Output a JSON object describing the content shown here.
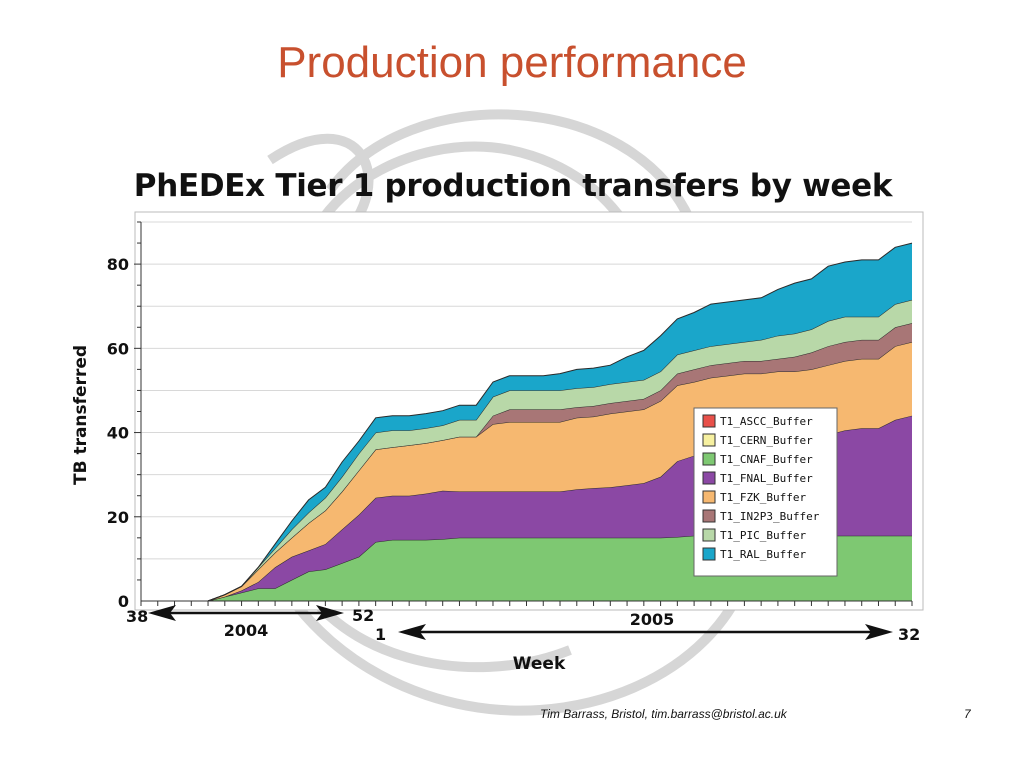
{
  "slide": {
    "title": "Production performance",
    "footer": "Tim Barrass, Bristol, tim.barrass@bristol.ac.uk",
    "page_number": "7"
  },
  "chart_data": {
    "type": "area",
    "stacked": true,
    "title": "PhEDEx Tier 1 production transfers by week",
    "xlabel": "Week",
    "ylabel": "TB  transferred",
    "ylim": [
      0,
      90
    ],
    "yticks": [
      0,
      20,
      40,
      60,
      80
    ],
    "grid": "horizontal",
    "legend_position": "center-right",
    "x": [
      "2004-38",
      "2004-39",
      "2004-40",
      "2004-41",
      "2004-42",
      "2004-43",
      "2004-44",
      "2004-45",
      "2004-46",
      "2004-47",
      "2004-48",
      "2004-49",
      "2004-50",
      "2004-51",
      "2004-52",
      "2005-01",
      "2005-02",
      "2005-03",
      "2005-04",
      "2005-05",
      "2005-06",
      "2005-07",
      "2005-08",
      "2005-09",
      "2005-10",
      "2005-11",
      "2005-12",
      "2005-13",
      "2005-14",
      "2005-15",
      "2005-16",
      "2005-17",
      "2005-18",
      "2005-19",
      "2005-20",
      "2005-21",
      "2005-22",
      "2005-23",
      "2005-24",
      "2005-25",
      "2005-26",
      "2005-27",
      "2005-28",
      "2005-29",
      "2005-30",
      "2005-31",
      "2005-32"
    ],
    "x_annotations": {
      "year_2004": "2004",
      "year_2005": "2005",
      "week_start_2004": "38",
      "week_end_2004": "52",
      "week_start_2005": "1",
      "week_end_2005": "32"
    },
    "series": [
      {
        "name": "T1_ASCC_Buffer",
        "color": "#e8504a",
        "values": [
          0,
          0,
          0,
          0,
          0,
          0,
          0,
          0,
          0,
          0,
          0,
          0,
          0,
          0,
          0,
          0,
          0,
          0,
          0,
          0,
          0,
          0,
          0,
          0,
          0,
          0,
          0,
          0,
          0,
          0,
          0,
          0,
          0,
          0,
          0,
          0,
          0,
          0,
          0,
          0,
          0,
          0,
          0,
          0,
          0,
          0,
          0
        ]
      },
      {
        "name": "T1_CERN_Buffer",
        "color": "#f6f0a0",
        "values": [
          0,
          0,
          0,
          0,
          0,
          0,
          0,
          0,
          0,
          0,
          0,
          0,
          0,
          0,
          0,
          0,
          0,
          0,
          0,
          0,
          0,
          0,
          0,
          0,
          0,
          0,
          0,
          0,
          0,
          0,
          0,
          0,
          0,
          0,
          0,
          0,
          0,
          0,
          0,
          0,
          0,
          0,
          0,
          0,
          0,
          0,
          0
        ]
      },
      {
        "name": "T1_CNAF_Buffer",
        "color": "#7ec872",
        "values": [
          0,
          0,
          0,
          0,
          0,
          1,
          2,
          3,
          3,
          5,
          7,
          7.5,
          9,
          10.5,
          14,
          14.5,
          14.5,
          14.5,
          14.7,
          15,
          15,
          15,
          15,
          15,
          15,
          15,
          15,
          15,
          15,
          15,
          15,
          15,
          15.2,
          15.5,
          15.5,
          15.5,
          15.5,
          15.5,
          15.5,
          15.5,
          15.5,
          15.5,
          15.5,
          15.5,
          15.5,
          15.5,
          15.5
        ]
      },
      {
        "name": "T1_FNAL_Buffer",
        "color": "#8b48a4",
        "values": [
          0,
          0,
          0,
          0,
          0,
          0,
          0.5,
          1.5,
          5,
          5.5,
          5,
          6,
          8,
          10,
          10.5,
          10.5,
          10.5,
          11,
          11.5,
          11,
          11,
          11,
          11,
          11,
          11,
          11,
          11.5,
          11.8,
          12,
          12.5,
          13,
          14.5,
          18,
          19,
          20,
          20.5,
          21,
          21.5,
          22,
          22.5,
          23,
          24,
          25,
          25.5,
          25.5,
          27.5,
          28.5
        ]
      },
      {
        "name": "T1_FZK_Buffer",
        "color": "#f6b870",
        "values": [
          0,
          0,
          0,
          0,
          0,
          0.5,
          1,
          3,
          3.5,
          4.5,
          6.5,
          8,
          9,
          10.5,
          11.5,
          11.5,
          12,
          12,
          12,
          13,
          13,
          16,
          16.5,
          16.5,
          16.5,
          16.5,
          17,
          17,
          17.5,
          17.5,
          17.5,
          18,
          18,
          17.5,
          17.5,
          17.5,
          17.5,
          17,
          17,
          16.5,
          16.5,
          16.5,
          16.5,
          16.5,
          16.5,
          17.5,
          17.5
        ]
      },
      {
        "name": "T1_IN2P3_Buffer",
        "color": "#a87676",
        "values": [
          0,
          0,
          0,
          0,
          0,
          0,
          0,
          0,
          0,
          0,
          0,
          0,
          0,
          0,
          0,
          0,
          0,
          0,
          0,
          0,
          0,
          2,
          3,
          3,
          3,
          3,
          2.5,
          2.5,
          2.5,
          2.5,
          2.5,
          2.5,
          2.8,
          3,
          3,
          3,
          3,
          3,
          3,
          3.5,
          4,
          4.5,
          4.5,
          4.5,
          4.5,
          4.5,
          4.5
        ]
      },
      {
        "name": "T1_PIC_Buffer",
        "color": "#b8d8a8",
        "values": [
          0,
          0,
          0,
          0,
          0,
          0,
          0,
          0.5,
          1,
          2,
          2.5,
          3,
          3.5,
          4,
          4,
          4,
          3.5,
          3.5,
          3.5,
          4,
          4,
          4.5,
          4.5,
          4.5,
          4.5,
          4.5,
          4.5,
          4.5,
          4.5,
          4.5,
          4.5,
          4.5,
          4.5,
          4.5,
          4.5,
          4.5,
          4.5,
          5,
          5.5,
          5.5,
          5.5,
          6,
          6,
          5.5,
          5.5,
          5.5,
          5.5
        ]
      },
      {
        "name": "T1_RAL_Buffer",
        "color": "#1aa6ca",
        "values": [
          0,
          0,
          0,
          0,
          0,
          0,
          0,
          0,
          1,
          2,
          3,
          2.5,
          3.5,
          3,
          3.5,
          3.5,
          3.5,
          3.5,
          3.5,
          3.5,
          3.5,
          3.5,
          3.5,
          3.5,
          3.5,
          4,
          4.5,
          4.5,
          4.5,
          6,
          7,
          8.5,
          8.5,
          9,
          10,
          10,
          10,
          10,
          11,
          12,
          12,
          13,
          13,
          13.5,
          13.5,
          13.5,
          13.5
        ]
      }
    ]
  }
}
